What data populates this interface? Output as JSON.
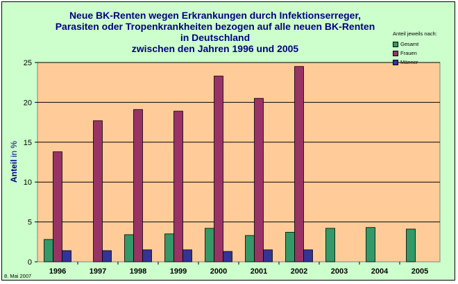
{
  "chart_data": {
    "type": "bar",
    "title_lines": [
      "Neue BK-Renten wegen Erkrankungen durch Infektionserreger,",
      "Parasiten oder Tropenkrankheiten bezogen auf alle neuen BK-Renten",
      "in Deutschland",
      "zwischen den Jahren 1996 und 2005"
    ],
    "ylabel": "Anteil",
    "ylabel_unit": "in %",
    "ylim": [
      0,
      25
    ],
    "yticks": [
      0,
      5,
      10,
      15,
      20,
      25
    ],
    "grid": true,
    "legend_title": "Anteil jeweils nach:",
    "legend_position": "top-right",
    "categories": [
      "1996",
      "1997",
      "1998",
      "1999",
      "2000",
      "2001",
      "2002",
      "2003",
      "2004",
      "2005"
    ],
    "series": [
      {
        "name": "Gesamt",
        "color": "#339966",
        "values": [
          2.8,
          null,
          3.4,
          3.5,
          4.2,
          3.3,
          3.7,
          4.2,
          4.3,
          4.1
        ]
      },
      {
        "name": "Frauen",
        "color": "#993366",
        "values": [
          13.8,
          17.7,
          19.1,
          18.9,
          23.3,
          20.5,
          24.5,
          null,
          null,
          null
        ]
      },
      {
        "name": "Männer",
        "color": "#333399",
        "values": [
          1.4,
          1.4,
          1.5,
          1.5,
          1.3,
          1.5,
          1.5,
          null,
          null,
          null
        ]
      }
    ],
    "plot_background": "#ffcc99"
  },
  "footnote": "8. Mai 2007"
}
